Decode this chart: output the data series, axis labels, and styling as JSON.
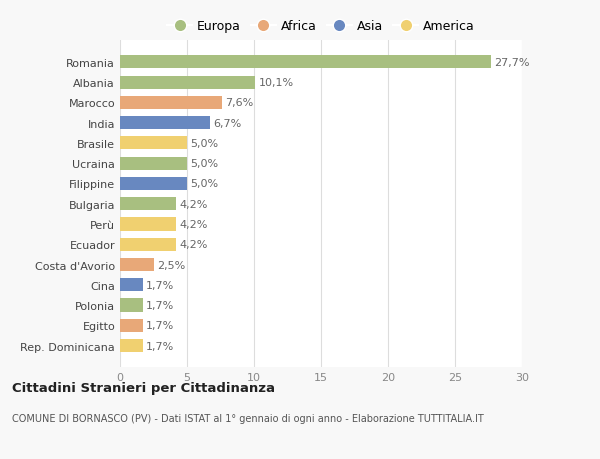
{
  "countries": [
    "Romania",
    "Albania",
    "Marocco",
    "India",
    "Brasile",
    "Ucraina",
    "Filippine",
    "Bulgaria",
    "Perù",
    "Ecuador",
    "Costa d'Avorio",
    "Cina",
    "Polonia",
    "Egitto",
    "Rep. Dominicana"
  ],
  "values": [
    27.7,
    10.1,
    7.6,
    6.7,
    5.0,
    5.0,
    5.0,
    4.2,
    4.2,
    4.2,
    2.5,
    1.7,
    1.7,
    1.7,
    1.7
  ],
  "labels": [
    "27,7%",
    "10,1%",
    "7,6%",
    "6,7%",
    "5,0%",
    "5,0%",
    "5,0%",
    "4,2%",
    "4,2%",
    "4,2%",
    "2,5%",
    "1,7%",
    "1,7%",
    "1,7%",
    "1,7%"
  ],
  "colors": [
    "#a8bf80",
    "#a8bf80",
    "#e8a878",
    "#6888c0",
    "#f0d070",
    "#a8bf80",
    "#6888c0",
    "#a8bf80",
    "#f0d070",
    "#f0d070",
    "#e8a878",
    "#6888c0",
    "#a8bf80",
    "#e8a878",
    "#f0d070"
  ],
  "legend_labels": [
    "Europa",
    "Africa",
    "Asia",
    "America"
  ],
  "legend_colors": [
    "#a8bf80",
    "#e8a878",
    "#6888c0",
    "#f0d070"
  ],
  "xlim": [
    0,
    30
  ],
  "xticks": [
    0,
    5,
    10,
    15,
    20,
    25,
    30
  ],
  "title": "Cittadini Stranieri per Cittadinanza",
  "subtitle": "COMUNE DI BORNASCO (PV) - Dati ISTAT al 1° gennaio di ogni anno - Elaborazione TUTTITALIA.IT",
  "background_color": "#f8f8f8",
  "bar_background": "#ffffff",
  "grid_color": "#dddddd"
}
